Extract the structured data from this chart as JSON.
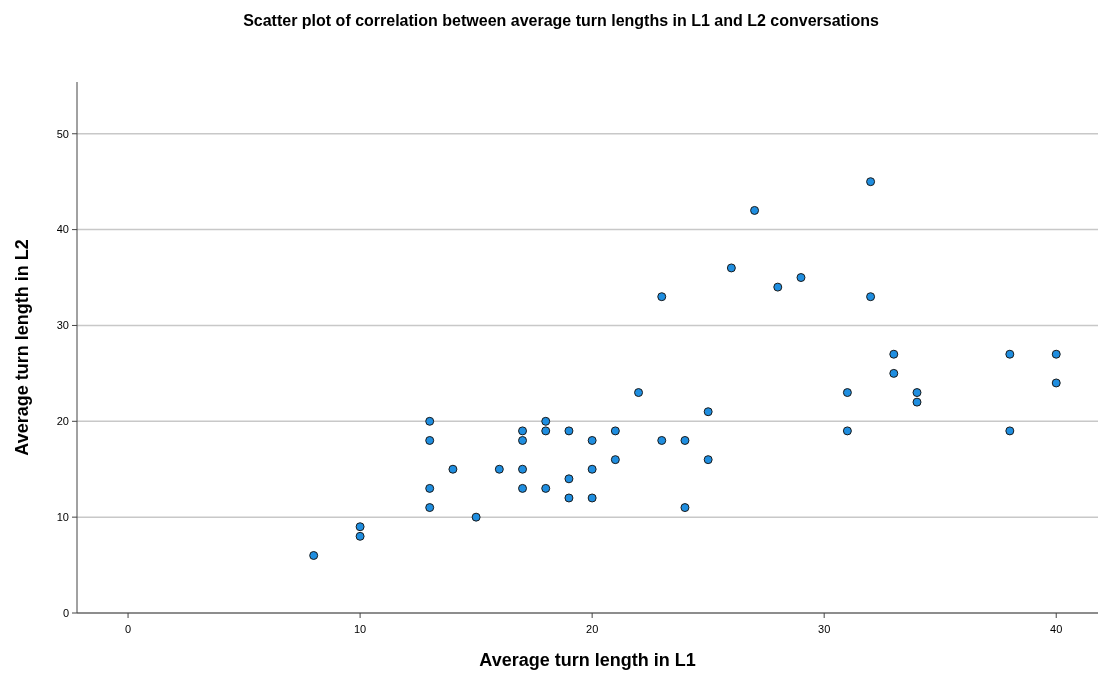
{
  "chart_data": {
    "type": "scatter",
    "title": "Scatter plot of correlation between average turn lengths in L1 and L2 conversations",
    "xlabel": "Average turn length in L1",
    "ylabel": "Average turn length in L2",
    "series": [
      {
        "color": "#1f8ee0",
        "x": [
          8,
          10,
          10,
          13,
          13,
          13,
          13,
          14,
          15,
          16,
          17,
          17,
          17,
          17,
          18,
          18,
          18,
          19,
          19,
          19,
          20,
          20,
          20,
          21,
          21,
          22,
          23,
          23,
          24,
          24,
          25,
          25,
          26,
          27,
          28,
          29,
          31,
          31,
          32,
          32,
          33,
          33,
          34,
          34,
          38,
          38,
          40,
          40
        ],
        "values": [
          6,
          9,
          8,
          20,
          18,
          13,
          11,
          15,
          10,
          15,
          19,
          18,
          15,
          13,
          20,
          19,
          13,
          19,
          14,
          12,
          18,
          15,
          12,
          19,
          16,
          23,
          33,
          18,
          18,
          11,
          21,
          16,
          36,
          42,
          34,
          35,
          23,
          19,
          45,
          33,
          27,
          25,
          23,
          22,
          27,
          19,
          27,
          24
        ]
      }
    ],
    "xlim": [
      -2.2,
      41.8
    ],
    "xticks": [
      0,
      10,
      20,
      30,
      40
    ],
    "ylim": [
      0,
      55.4
    ],
    "yticks": [
      0,
      10,
      20,
      30,
      40,
      50
    ],
    "grid": "y",
    "marker": "circle"
  }
}
